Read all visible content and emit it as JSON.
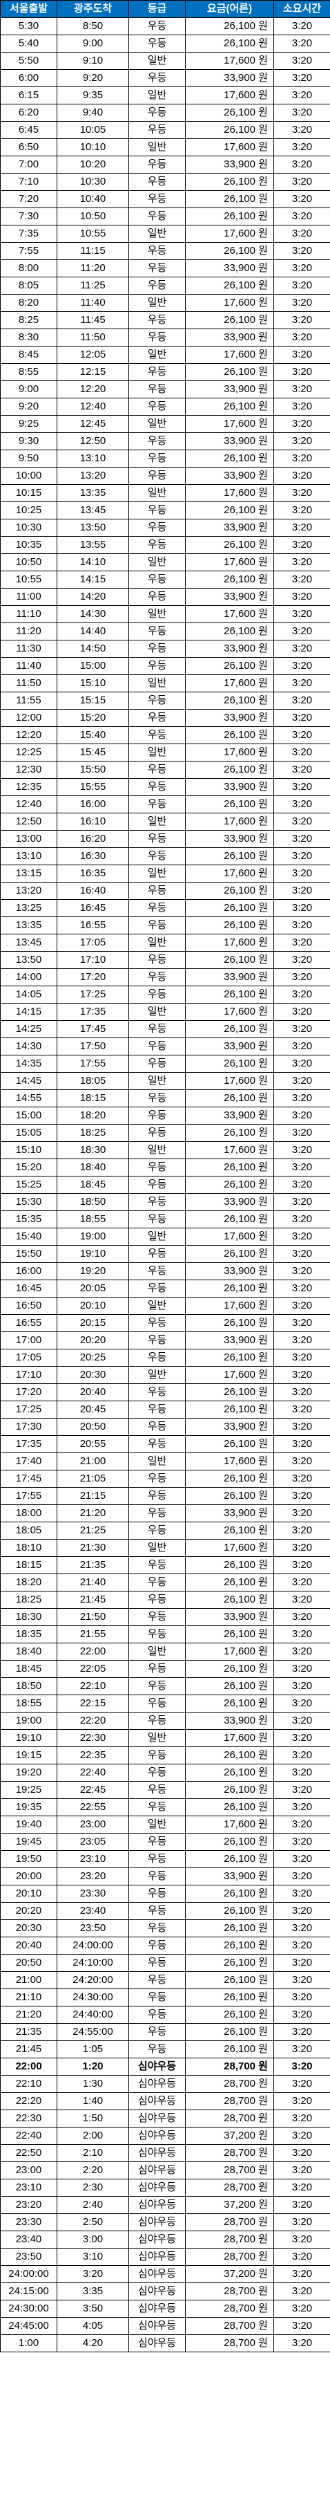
{
  "headers": [
    "서울출발",
    "광주도착",
    "등급",
    "요금(어른)",
    "소요시간"
  ],
  "rows": [
    [
      "5:30",
      "8:50",
      "우등",
      "26,100 원",
      "3:20"
    ],
    [
      "5:40",
      "9:00",
      "우등",
      "26,100 원",
      "3:20"
    ],
    [
      "5:50",
      "9:10",
      "일반",
      "17,600 원",
      "3:20"
    ],
    [
      "6:00",
      "9:20",
      "우등",
      "33,900 원",
      "3:20"
    ],
    [
      "6:15",
      "9:35",
      "일반",
      "17,600 원",
      "3:20"
    ],
    [
      "6:20",
      "9:40",
      "우등",
      "26,100 원",
      "3:20"
    ],
    [
      "6:45",
      "10:05",
      "우등",
      "26,100 원",
      "3:20"
    ],
    [
      "6:50",
      "10:10",
      "일반",
      "17,600 원",
      "3:20"
    ],
    [
      "7:00",
      "10:20",
      "우등",
      "33,900 원",
      "3:20"
    ],
    [
      "7:10",
      "10:30",
      "우등",
      "26,100 원",
      "3:20"
    ],
    [
      "7:20",
      "10:40",
      "우등",
      "26,100 원",
      "3:20"
    ],
    [
      "7:30",
      "10:50",
      "우등",
      "26,100 원",
      "3:20"
    ],
    [
      "7:35",
      "10:55",
      "일반",
      "17,600 원",
      "3:20"
    ],
    [
      "7:55",
      "11:15",
      "우등",
      "26,100 원",
      "3:20"
    ],
    [
      "8:00",
      "11:20",
      "우등",
      "33,900 원",
      "3:20"
    ],
    [
      "8:05",
      "11:25",
      "우등",
      "26,100 원",
      "3:20"
    ],
    [
      "8:20",
      "11:40",
      "일반",
      "17,600 원",
      "3:20"
    ],
    [
      "8:25",
      "11:45",
      "우등",
      "26,100 원",
      "3:20"
    ],
    [
      "8:30",
      "11:50",
      "우등",
      "33,900 원",
      "3:20"
    ],
    [
      "8:45",
      "12:05",
      "일반",
      "17,600 원",
      "3:20"
    ],
    [
      "8:55",
      "12:15",
      "우등",
      "26,100 원",
      "3:20"
    ],
    [
      "9:00",
      "12:20",
      "우등",
      "33,900 원",
      "3:20"
    ],
    [
      "9:20",
      "12:40",
      "우등",
      "26,100 원",
      "3:20"
    ],
    [
      "9:25",
      "12:45",
      "일반",
      "17,600 원",
      "3:20"
    ],
    [
      "9:30",
      "12:50",
      "우등",
      "33,900 원",
      "3:20"
    ],
    [
      "9:50",
      "13:10",
      "우등",
      "26,100 원",
      "3:20"
    ],
    [
      "10:00",
      "13:20",
      "우등",
      "33,900 원",
      "3:20"
    ],
    [
      "10:15",
      "13:35",
      "일반",
      "17,600 원",
      "3:20"
    ],
    [
      "10:25",
      "13:45",
      "우등",
      "26,100 원",
      "3:20"
    ],
    [
      "10:30",
      "13:50",
      "우등",
      "33,900 원",
      "3:20"
    ],
    [
      "10:35",
      "13:55",
      "우등",
      "26,100 원",
      "3:20"
    ],
    [
      "10:50",
      "14:10",
      "일반",
      "17,600 원",
      "3:20"
    ],
    [
      "10:55",
      "14:15",
      "우등",
      "26,100 원",
      "3:20"
    ],
    [
      "11:00",
      "14:20",
      "우등",
      "33,900 원",
      "3:20"
    ],
    [
      "11:10",
      "14:30",
      "일반",
      "17,600 원",
      "3:20"
    ],
    [
      "11:20",
      "14:40",
      "우등",
      "26,100 원",
      "3:20"
    ],
    [
      "11:30",
      "14:50",
      "우등",
      "33,900 원",
      "3:20"
    ],
    [
      "11:40",
      "15:00",
      "우등",
      "26,100 원",
      "3:20"
    ],
    [
      "11:50",
      "15:10",
      "일반",
      "17,600 원",
      "3:20"
    ],
    [
      "11:55",
      "15:15",
      "우등",
      "26,100 원",
      "3:20"
    ],
    [
      "12:00",
      "15:20",
      "우등",
      "33,900 원",
      "3:20"
    ],
    [
      "12:20",
      "15:40",
      "우등",
      "26,100 원",
      "3:20"
    ],
    [
      "12:25",
      "15:45",
      "일반",
      "17,600 원",
      "3:20"
    ],
    [
      "12:30",
      "15:50",
      "우등",
      "26,100 원",
      "3:20"
    ],
    [
      "12:35",
      "15:55",
      "우등",
      "33,900 원",
      "3:20"
    ],
    [
      "12:40",
      "16:00",
      "우등",
      "26,100 원",
      "3:20"
    ],
    [
      "12:50",
      "16:10",
      "일반",
      "17,600 원",
      "3:20"
    ],
    [
      "13:00",
      "16:20",
      "우등",
      "33,900 원",
      "3:20"
    ],
    [
      "13:10",
      "16:30",
      "우등",
      "26,100 원",
      "3:20"
    ],
    [
      "13:15",
      "16:35",
      "일반",
      "17,600 원",
      "3:20"
    ],
    [
      "13:20",
      "16:40",
      "우등",
      "26,100 원",
      "3:20"
    ],
    [
      "13:25",
      "16:45",
      "우등",
      "26,100 원",
      "3:20"
    ],
    [
      "13:35",
      "16:55",
      "우등",
      "26,100 원",
      "3:20"
    ],
    [
      "13:45",
      "17:05",
      "일반",
      "17,600 원",
      "3:20"
    ],
    [
      "13:50",
      "17:10",
      "우등",
      "26,100 원",
      "3:20"
    ],
    [
      "14:00",
      "17:20",
      "우등",
      "33,900 원",
      "3:20"
    ],
    [
      "14:05",
      "17:25",
      "우등",
      "26,100 원",
      "3:20"
    ],
    [
      "14:15",
      "17:35",
      "일반",
      "17,600 원",
      "3:20"
    ],
    [
      "14:25",
      "17:45",
      "우등",
      "26,100 원",
      "3:20"
    ],
    [
      "14:30",
      "17:50",
      "우등",
      "33,900 원",
      "3:20"
    ],
    [
      "14:35",
      "17:55",
      "우등",
      "26,100 원",
      "3:20"
    ],
    [
      "14:45",
      "18:05",
      "일반",
      "17,600 원",
      "3:20"
    ],
    [
      "14:55",
      "18:15",
      "우등",
      "26,100 원",
      "3:20"
    ],
    [
      "15:00",
      "18:20",
      "우등",
      "33,900 원",
      "3:20"
    ],
    [
      "15:05",
      "18:25",
      "우등",
      "26,100 원",
      "3:20"
    ],
    [
      "15:10",
      "18:30",
      "일반",
      "17,600 원",
      "3:20"
    ],
    [
      "15:20",
      "18:40",
      "우등",
      "26,100 원",
      "3:20"
    ],
    [
      "15:25",
      "18:45",
      "우등",
      "26,100 원",
      "3:20"
    ],
    [
      "15:30",
      "18:50",
      "우등",
      "33,900 원",
      "3:20"
    ],
    [
      "15:35",
      "18:55",
      "우등",
      "26,100 원",
      "3:20"
    ],
    [
      "15:40",
      "19:00",
      "일반",
      "17,600 원",
      "3:20"
    ],
    [
      "15:50",
      "19:10",
      "우등",
      "26,100 원",
      "3:20"
    ],
    [
      "16:00",
      "19:20",
      "우등",
      "33,900 원",
      "3:20"
    ],
    [
      "16:45",
      "20:05",
      "우등",
      "26,100 원",
      "3:20"
    ],
    [
      "16:50",
      "20:10",
      "일반",
      "17,600 원",
      "3:20"
    ],
    [
      "16:55",
      "20:15",
      "우등",
      "26,100 원",
      "3:20"
    ],
    [
      "17:00",
      "20:20",
      "우등",
      "33,900 원",
      "3:20"
    ],
    [
      "17:05",
      "20:25",
      "우등",
      "26,100 원",
      "3:20"
    ],
    [
      "17:10",
      "20:30",
      "일반",
      "17,600 원",
      "3:20"
    ],
    [
      "17:20",
      "20:40",
      "우등",
      "26,100 원",
      "3:20"
    ],
    [
      "17:25",
      "20:45",
      "우등",
      "26,100 원",
      "3:20"
    ],
    [
      "17:30",
      "20:50",
      "우등",
      "33,900 원",
      "3:20"
    ],
    [
      "17:35",
      "20:55",
      "우등",
      "26,100 원",
      "3:20"
    ],
    [
      "17:40",
      "21:00",
      "일반",
      "17,600 원",
      "3:20"
    ],
    [
      "17:45",
      "21:05",
      "우등",
      "26,100 원",
      "3:20"
    ],
    [
      "17:55",
      "21:15",
      "우등",
      "26,100 원",
      "3:20"
    ],
    [
      "18:00",
      "21:20",
      "우등",
      "33,900 원",
      "3:20"
    ],
    [
      "18:05",
      "21:25",
      "우등",
      "26,100 원",
      "3:20"
    ],
    [
      "18:10",
      "21:30",
      "일반",
      "17,600 원",
      "3:20"
    ],
    [
      "18:15",
      "21:35",
      "우등",
      "26,100 원",
      "3:20"
    ],
    [
      "18:20",
      "21:40",
      "우등",
      "26,100 원",
      "3:20"
    ],
    [
      "18:25",
      "21:45",
      "우등",
      "26,100 원",
      "3:20"
    ],
    [
      "18:30",
      "21:50",
      "우등",
      "33,900 원",
      "3:20"
    ],
    [
      "18:35",
      "21:55",
      "우등",
      "26,100 원",
      "3:20"
    ],
    [
      "18:40",
      "22:00",
      "일반",
      "17,600 원",
      "3:20"
    ],
    [
      "18:45",
      "22:05",
      "우등",
      "26,100 원",
      "3:20"
    ],
    [
      "18:50",
      "22:10",
      "우등",
      "26,100 원",
      "3:20"
    ],
    [
      "18:55",
      "22:15",
      "우등",
      "26,100 원",
      "3:20"
    ],
    [
      "19:00",
      "22:20",
      "우등",
      "33,900 원",
      "3:20"
    ],
    [
      "19:10",
      "22:30",
      "일반",
      "17,600 원",
      "3:20"
    ],
    [
      "19:15",
      "22:35",
      "우등",
      "26,100 원",
      "3:20"
    ],
    [
      "19:20",
      "22:40",
      "우등",
      "26,100 원",
      "3:20"
    ],
    [
      "19:25",
      "22:45",
      "우등",
      "26,100 원",
      "3:20"
    ],
    [
      "19:35",
      "22:55",
      "우등",
      "26,100 원",
      "3:20"
    ],
    [
      "19:40",
      "23:00",
      "일반",
      "17,600 원",
      "3:20"
    ],
    [
      "19:45",
      "23:05",
      "우등",
      "26,100 원",
      "3:20"
    ],
    [
      "19:50",
      "23:10",
      "우등",
      "26,100 원",
      "3:20"
    ],
    [
      "20:00",
      "23:20",
      "우등",
      "33,900 원",
      "3:20"
    ],
    [
      "20:10",
      "23:30",
      "우등",
      "26,100 원",
      "3:20"
    ],
    [
      "20:20",
      "23:40",
      "우등",
      "26,100 원",
      "3:20"
    ],
    [
      "20:30",
      "23:50",
      "우등",
      "26,100 원",
      "3:20"
    ],
    [
      "20:40",
      "24:00:00",
      "우등",
      "26,100 원",
      "3:20"
    ],
    [
      "20:50",
      "24:10:00",
      "우등",
      "26,100 원",
      "3:20"
    ],
    [
      "21:00",
      "24:20:00",
      "우등",
      "26,100 원",
      "3:20"
    ],
    [
      "21:10",
      "24:30:00",
      "우등",
      "26,100 원",
      "3:20"
    ],
    [
      "21:20",
      "24:40:00",
      "우등",
      "26,100 원",
      "3:20"
    ],
    [
      "21:35",
      "24:55:00",
      "우등",
      "26,100 원",
      "3:20"
    ],
    [
      "21:45",
      "1:05",
      "우등",
      "26,100 원",
      "3:20"
    ],
    [
      "22:00",
      "1:20",
      "심야우등",
      "28,700 원",
      "3:20"
    ],
    [
      "22:10",
      "1:30",
      "심야우등",
      "28,700 원",
      "3:20"
    ],
    [
      "22:20",
      "1:40",
      "심야우등",
      "28,700 원",
      "3:20"
    ],
    [
      "22:30",
      "1:50",
      "심야우등",
      "28,700 원",
      "3:20"
    ],
    [
      "22:40",
      "2:00",
      "심야우등",
      "37,200 원",
      "3:20"
    ],
    [
      "22:50",
      "2:10",
      "심야우등",
      "28,700 원",
      "3:20"
    ],
    [
      "23:00",
      "2:20",
      "심야우등",
      "28,700 원",
      "3:20"
    ],
    [
      "23:10",
      "2:30",
      "심야우등",
      "28,700 원",
      "3:20"
    ],
    [
      "23:20",
      "2:40",
      "심야우등",
      "37,200 원",
      "3:20"
    ],
    [
      "23:30",
      "2:50",
      "심야우등",
      "28,700 원",
      "3:20"
    ],
    [
      "23:40",
      "3:00",
      "심야우등",
      "28,700 원",
      "3:20"
    ],
    [
      "23:50",
      "3:10",
      "심야우등",
      "28,700 원",
      "3:20"
    ],
    [
      "24:00:00",
      "3:20",
      "심야우등",
      "37,200 원",
      "3:20"
    ],
    [
      "24:15:00",
      "3:35",
      "심야우등",
      "28,700 원",
      "3:20"
    ],
    [
      "24:30:00",
      "3:50",
      "심야우등",
      "28,700 원",
      "3:20"
    ],
    [
      "24:45:00",
      "4:05",
      "심야우등",
      "28,700 원",
      "3:20"
    ],
    [
      "1:00",
      "4:20",
      "심야우등",
      "28,700 원",
      "3:20"
    ]
  ],
  "highlight_row": 118
}
